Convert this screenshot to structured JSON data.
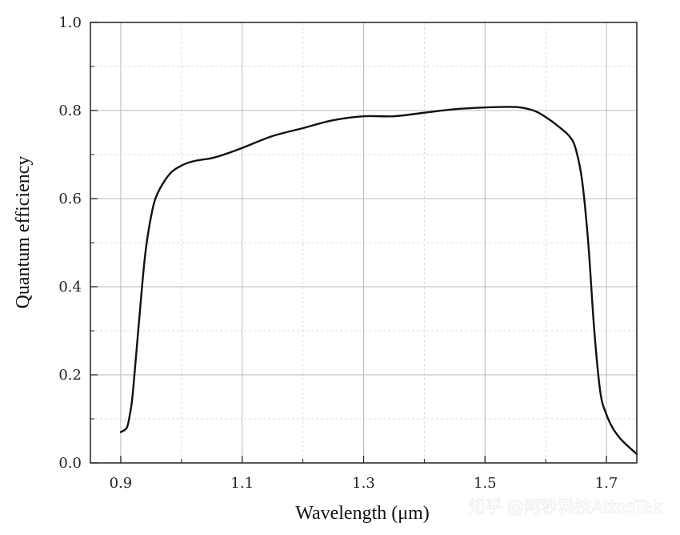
{
  "chart_data": {
    "type": "line",
    "title": "",
    "xlabel": "Wavelength (μm)",
    "ylabel": "Quantum efficiency",
    "xlim": [
      0.85,
      1.75
    ],
    "ylim": [
      0.0,
      1.0
    ],
    "xticks": [
      0.9,
      1.1,
      1.3,
      1.5,
      1.7
    ],
    "xtick_labels": [
      "0.9",
      "1.1",
      "1.3",
      "1.5",
      "1.7"
    ],
    "yticks": [
      0.0,
      0.2,
      0.4,
      0.6,
      0.8,
      1.0
    ],
    "ytick_labels": [
      "0.0",
      "0.2",
      "0.4",
      "0.6",
      "0.8",
      "1.0"
    ],
    "grid": true,
    "series": [
      {
        "color": "#111111",
        "x": [
          0.9,
          0.91,
          0.915,
          0.92,
          0.93,
          0.94,
          0.95,
          0.96,
          0.98,
          1.0,
          1.02,
          1.05,
          1.07,
          1.1,
          1.15,
          1.2,
          1.25,
          1.3,
          1.35,
          1.4,
          1.45,
          1.5,
          1.55,
          1.58,
          1.6,
          1.62,
          1.64,
          1.65,
          1.66,
          1.67,
          1.68,
          1.69,
          1.7,
          1.71,
          1.72,
          1.73,
          1.75
        ],
        "y": [
          0.07,
          0.08,
          0.11,
          0.16,
          0.32,
          0.47,
          0.56,
          0.61,
          0.655,
          0.675,
          0.685,
          0.692,
          0.7,
          0.715,
          0.742,
          0.76,
          0.778,
          0.787,
          0.787,
          0.795,
          0.803,
          0.807,
          0.808,
          0.8,
          0.785,
          0.765,
          0.74,
          0.71,
          0.64,
          0.5,
          0.3,
          0.16,
          0.11,
          0.08,
          0.06,
          0.045,
          0.02
        ]
      }
    ]
  },
  "watermark": "知乎 @阿秒科技AttosTek"
}
